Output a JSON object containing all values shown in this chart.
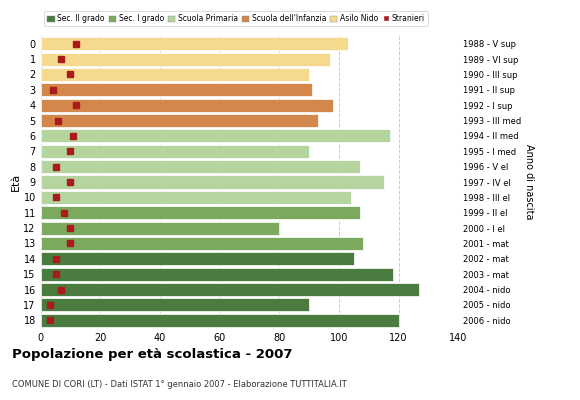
{
  "ages": [
    18,
    17,
    16,
    15,
    14,
    13,
    12,
    11,
    10,
    9,
    8,
    7,
    6,
    5,
    4,
    3,
    2,
    1,
    0
  ],
  "years": [
    "1988 - V sup",
    "1989 - VI sup",
    "1990 - III sup",
    "1991 - II sup",
    "1992 - I sup",
    "1993 - III med",
    "1994 - II med",
    "1995 - I med",
    "1996 - V el",
    "1997 - IV el",
    "1998 - III el",
    "1999 - II el",
    "2000 - I el",
    "2001 - mat",
    "2002 - mat",
    "2003 - mat",
    "2004 - nido",
    "2005 - nido",
    "2006 - nido"
  ],
  "bar_values": [
    120,
    90,
    127,
    118,
    105,
    108,
    80,
    107,
    104,
    115,
    107,
    90,
    117,
    93,
    98,
    91,
    90,
    97,
    103
  ],
  "stranieri_x": [
    3,
    3,
    7,
    5,
    5,
    10,
    10,
    8,
    5,
    10,
    5,
    10,
    11,
    6,
    12,
    4,
    10,
    7,
    12
  ],
  "bar_colors": [
    "#4a7c3f",
    "#4a7c3f",
    "#4a7c3f",
    "#4a7c3f",
    "#4a7c3f",
    "#7baa5e",
    "#7baa5e",
    "#7baa5e",
    "#b5d4a0",
    "#b5d4a0",
    "#b5d4a0",
    "#b5d4a0",
    "#b5d4a0",
    "#d4874a",
    "#d4874a",
    "#d4874a",
    "#f5d98c",
    "#f5d98c",
    "#f5d98c"
  ],
  "legend_labels": [
    "Sec. II grado",
    "Sec. I grado",
    "Scuola Primaria",
    "Scuola dell'Infanzia",
    "Asilo Nido",
    "Stranieri"
  ],
  "legend_colors": [
    "#4a7c3f",
    "#7baa5e",
    "#b5d4a0",
    "#d4874a",
    "#f5d98c",
    "#aa1c1c"
  ],
  "title": "Popolazione per età scolastica - 2007",
  "subtitle": "COMUNE DI CORI (LT) - Dati ISTAT 1° gennaio 2007 - Elaborazione TUTTITALIA.IT",
  "ylabel_left": "Età",
  "ylabel_right": "Anno di nascita",
  "xlim": [
    0,
    140
  ],
  "xticks": [
    0,
    20,
    40,
    60,
    80,
    100,
    120,
    140
  ],
  "bg_color": "#ffffff",
  "grid_color": "#cccccc",
  "stranieri_color": "#aa1c1c"
}
